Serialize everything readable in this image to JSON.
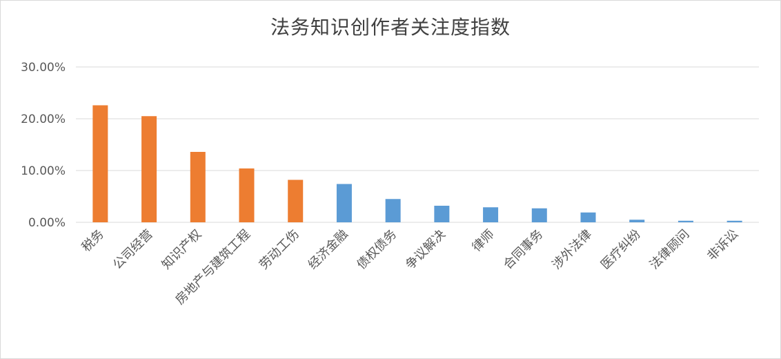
{
  "chart_data": {
    "type": "bar",
    "title": "法务知识创作者关注度指数",
    "xlabel": "",
    "ylabel": "",
    "ylim": [
      0,
      30
    ],
    "yticks": [
      0,
      10,
      20,
      30
    ],
    "ytick_labels": [
      "0.00%",
      "10.00%",
      "20.00%",
      "30.00%"
    ],
    "grid": true,
    "legend": "none",
    "categories": [
      "税务",
      "公司经营",
      "知识产权",
      "房地产与建筑工程",
      "劳动工伤",
      "经济金融",
      "债权债务",
      "争议解决",
      "律师",
      "合同事务",
      "涉外法律",
      "医疗纠纷",
      "法律顾问",
      "非诉讼"
    ],
    "values": [
      22.6,
      20.5,
      13.6,
      10.4,
      8.2,
      7.4,
      4.5,
      3.2,
      2.9,
      2.7,
      1.9,
      0.5,
      0.3,
      0.3
    ],
    "bar_colors": [
      "#ED7D31",
      "#ED7D31",
      "#ED7D31",
      "#ED7D31",
      "#ED7D31",
      "#5B9BD5",
      "#5B9BD5",
      "#5B9BD5",
      "#5B9BD5",
      "#5B9BD5",
      "#5B9BD5",
      "#5B9BD5",
      "#5B9BD5",
      "#5B9BD5"
    ],
    "colors": {
      "highlight": "#ED7D31",
      "default": "#5B9BD5",
      "grid": "#D9D9D9",
      "text": "#595959"
    }
  }
}
